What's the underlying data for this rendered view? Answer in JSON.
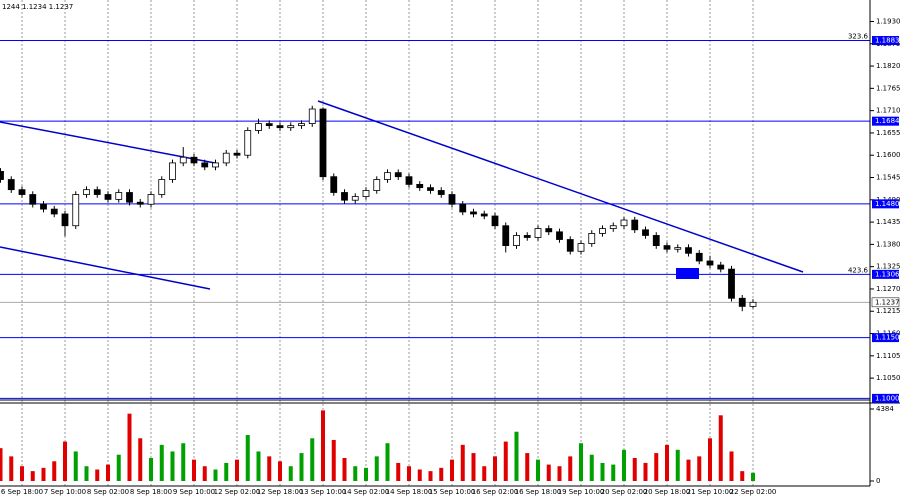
{
  "chart_data": [
    {
      "type": "candlestick",
      "ohlc_text": "1244 1.1234 1.1237",
      "open": [
        1.156,
        1.154,
        1.1515,
        1.1503,
        1.1479,
        1.1467,
        1.1455,
        1.1426,
        1.1503,
        1.1515,
        1.1503,
        1.1491,
        1.1508,
        1.1484,
        1.1479,
        1.1503,
        1.154,
        1.1581,
        1.1595,
        1.1581,
        1.1571,
        1.1581,
        1.1605,
        1.16,
        1.1661,
        1.1678,
        1.1673,
        1.1668,
        1.1673,
        1.1678,
        1.1714,
        1.1547,
        1.1508,
        1.1489,
        1.1498,
        1.1513,
        1.154,
        1.1557,
        1.1547,
        1.1528,
        1.152,
        1.1513,
        1.1503,
        1.1479,
        1.146,
        1.1455,
        1.145,
        1.1426,
        1.1377,
        1.1402,
        1.1397,
        1.1419,
        1.1411,
        1.1392,
        1.1363,
        1.1382,
        1.1407,
        1.1419,
        1.1426,
        1.144,
        1.1416,
        1.1402,
        1.1377,
        1.1368,
        1.1372,
        1.1358,
        1.1339,
        1.1329,
        1.1319,
        1.1247,
        1.1227
      ],
      "high": [
        1.1568,
        1.1548,
        1.1523,
        1.1511,
        1.1487,
        1.1475,
        1.1463,
        1.1511,
        1.1523,
        1.1523,
        1.1511,
        1.1516,
        1.1516,
        1.1492,
        1.1511,
        1.1548,
        1.1589,
        1.162,
        1.1603,
        1.1589,
        1.1589,
        1.1613,
        1.1613,
        1.1669,
        1.169,
        1.1686,
        1.1681,
        1.1681,
        1.1686,
        1.1722,
        1.1718,
        1.1555,
        1.1516,
        1.1506,
        1.1521,
        1.1548,
        1.1565,
        1.1565,
        1.1555,
        1.1536,
        1.1528,
        1.1521,
        1.1511,
        1.1487,
        1.1468,
        1.1463,
        1.1458,
        1.1434,
        1.141,
        1.141,
        1.1427,
        1.1427,
        1.1419,
        1.14,
        1.139,
        1.1415,
        1.1427,
        1.1434,
        1.1448,
        1.1448,
        1.1424,
        1.141,
        1.1385,
        1.138,
        1.138,
        1.1366,
        1.1352,
        1.1337,
        1.1327,
        1.1255,
        1.1245
      ],
      "low": [
        1.1532,
        1.1507,
        1.1495,
        1.1471,
        1.1459,
        1.1447,
        1.14,
        1.1418,
        1.1495,
        1.1495,
        1.1483,
        1.1483,
        1.1476,
        1.1471,
        1.1471,
        1.1495,
        1.1532,
        1.1573,
        1.1573,
        1.1563,
        1.1563,
        1.1573,
        1.1592,
        1.1592,
        1.1653,
        1.1665,
        1.166,
        1.166,
        1.1665,
        1.167,
        1.1539,
        1.15,
        1.1481,
        1.1481,
        1.149,
        1.1505,
        1.1532,
        1.1539,
        1.152,
        1.1512,
        1.1505,
        1.1495,
        1.1471,
        1.1452,
        1.1447,
        1.1442,
        1.1418,
        1.136,
        1.1369,
        1.1389,
        1.1389,
        1.1403,
        1.1384,
        1.1355,
        1.1355,
        1.1374,
        1.1399,
        1.1411,
        1.1418,
        1.1408,
        1.1394,
        1.1369,
        1.136,
        1.136,
        1.135,
        1.1331,
        1.1321,
        1.1311,
        1.1239,
        1.1215,
        1.1222
      ],
      "close": [
        1.154,
        1.1515,
        1.1503,
        1.1479,
        1.1467,
        1.1455,
        1.1426,
        1.1503,
        1.1515,
        1.1503,
        1.1491,
        1.1508,
        1.1484,
        1.1479,
        1.1503,
        1.154,
        1.1581,
        1.1595,
        1.1581,
        1.1571,
        1.1581,
        1.1605,
        1.16,
        1.1661,
        1.1678,
        1.1673,
        1.1668,
        1.1673,
        1.1678,
        1.1714,
        1.1547,
        1.1508,
        1.1489,
        1.1498,
        1.1513,
        1.154,
        1.1557,
        1.1547,
        1.1528,
        1.152,
        1.1513,
        1.1503,
        1.1479,
        1.146,
        1.1455,
        1.145,
        1.1426,
        1.1377,
        1.1402,
        1.1397,
        1.1419,
        1.1411,
        1.1392,
        1.1363,
        1.1382,
        1.1407,
        1.1419,
        1.1426,
        1.144,
        1.1416,
        1.1402,
        1.1377,
        1.1368,
        1.1372,
        1.1358,
        1.1339,
        1.1329,
        1.1319,
        1.1247,
        1.1227,
        1.1237
      ],
      "ylim": [
        1.0996,
        1.1983
      ],
      "yticks": [
        {
          "value": 1.193,
          "label": "1.1930"
        },
        1.1875,
        {
          "value": 1.182,
          "label": "1.1820"
        },
        1.1765,
        {
          "value": 1.171,
          "label": "1.1710"
        },
        1.1655,
        {
          "value": 1.16,
          "label": "1.1600"
        },
        1.1545,
        {
          "value": 1.149,
          "label": "1.1490"
        },
        1.1435,
        {
          "value": 1.138,
          "label": "1.1380"
        },
        1.1325,
        {
          "value": 1.127,
          "label": "1.1270"
        },
        1.1215,
        {
          "value": 1.116,
          "label": "1.1160"
        },
        1.1105,
        {
          "value": 1.105,
          "label": "1.1050"
        }
      ],
      "levels": [
        {
          "value": 1.1883,
          "label": "1.1883",
          "fib": "323.6"
        },
        {
          "value": 1.1684,
          "label": "1.1684"
        },
        {
          "value": 1.148,
          "label": "1.1480"
        },
        {
          "value": 1.1306,
          "label": "1.1306",
          "fib": "423.6"
        },
        {
          "value": 1.115,
          "label": "1.1150"
        },
        {
          "value": 1.1,
          "label": "1.1000"
        }
      ],
      "level_color": "#0000ff",
      "last_price": 1.1237,
      "candle_color": "#000000"
    },
    {
      "type": "bar",
      "categories": [
        null,
        null,
        "6 Sep 18:00",
        null,
        null,
        null,
        "7 Sep 10:00",
        null,
        null,
        null,
        "8 Sep 02:00",
        null,
        null,
        null,
        "8 Sep 18:00",
        null,
        null,
        null,
        "9 Sep 10:00",
        null,
        null,
        null,
        "12 Sep 02:00",
        null,
        null,
        null,
        "12 Sep 18:00",
        null,
        null,
        null,
        "13 Sep 10:00",
        null,
        null,
        null,
        "14 Sep 02:00",
        null,
        null,
        null,
        "14 Sep 18:00",
        null,
        null,
        null,
        "15 Sep 10:00",
        null,
        null,
        null,
        "16 Sep 02:00",
        null,
        null,
        null,
        "16 Sep 18:00",
        null,
        null,
        null,
        "19 Sep 10:00",
        null,
        null,
        null,
        "20 Sep 02:00",
        null,
        null,
        null,
        "20 Sep 18:00",
        null,
        null,
        null,
        "21 Sep 10:00",
        null,
        null,
        null,
        "22 Sep 02:00"
      ],
      "values": [
        2000,
        1500,
        900,
        600,
        800,
        1200,
        2400,
        1800,
        900,
        700,
        1000,
        1600,
        4100,
        2600,
        1400,
        2200,
        1800,
        2300,
        1300,
        900,
        700,
        1100,
        1300,
        2800,
        1800,
        1500,
        1200,
        900,
        1700,
        2600,
        4300,
        2500,
        1400,
        900,
        800,
        1500,
        2300,
        1100,
        900,
        700,
        600,
        800,
        1300,
        2200,
        1700,
        900,
        1500,
        2400,
        3000,
        1700,
        1300,
        1000,
        900,
        1500,
        2300,
        1600,
        1100,
        1000,
        1900,
        1400,
        1100,
        1700,
        2200,
        1900,
        1300,
        1500,
        2600,
        4000,
        1800,
        600,
        500
      ],
      "ylim": [
        0,
        4384
      ],
      "yticks": [
        4384,
        0
      ],
      "up_color": "#00a000",
      "down_color": "#e00000"
    }
  ]
}
